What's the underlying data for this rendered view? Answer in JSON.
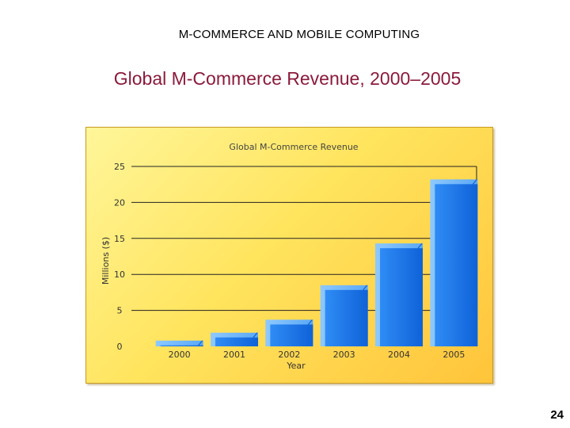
{
  "slide": {
    "header": "M-COMMERCE AND MOBILE COMPUTING",
    "title": "Global M-Commerce Revenue, 2000–2005",
    "page_number": "24"
  },
  "chart_data": {
    "type": "bar",
    "title": "Global M-Commerce Revenue",
    "xlabel": "Year",
    "ylabel": "Millions ($)",
    "categories": [
      "2000",
      "2001",
      "2002",
      "2003",
      "2004",
      "2005"
    ],
    "values": [
      0.8,
      1.9,
      3.7,
      8.5,
      14.3,
      23.2
    ],
    "ylim": [
      0,
      25
    ],
    "yticks": [
      0,
      5,
      10,
      15,
      20,
      25
    ],
    "grid": true,
    "legend": "none",
    "colors": {
      "bar_top": "#8ec9ff",
      "bar_main": "#1f7be8",
      "bar_dark": "#0a57c9",
      "grid": "#222222"
    }
  }
}
